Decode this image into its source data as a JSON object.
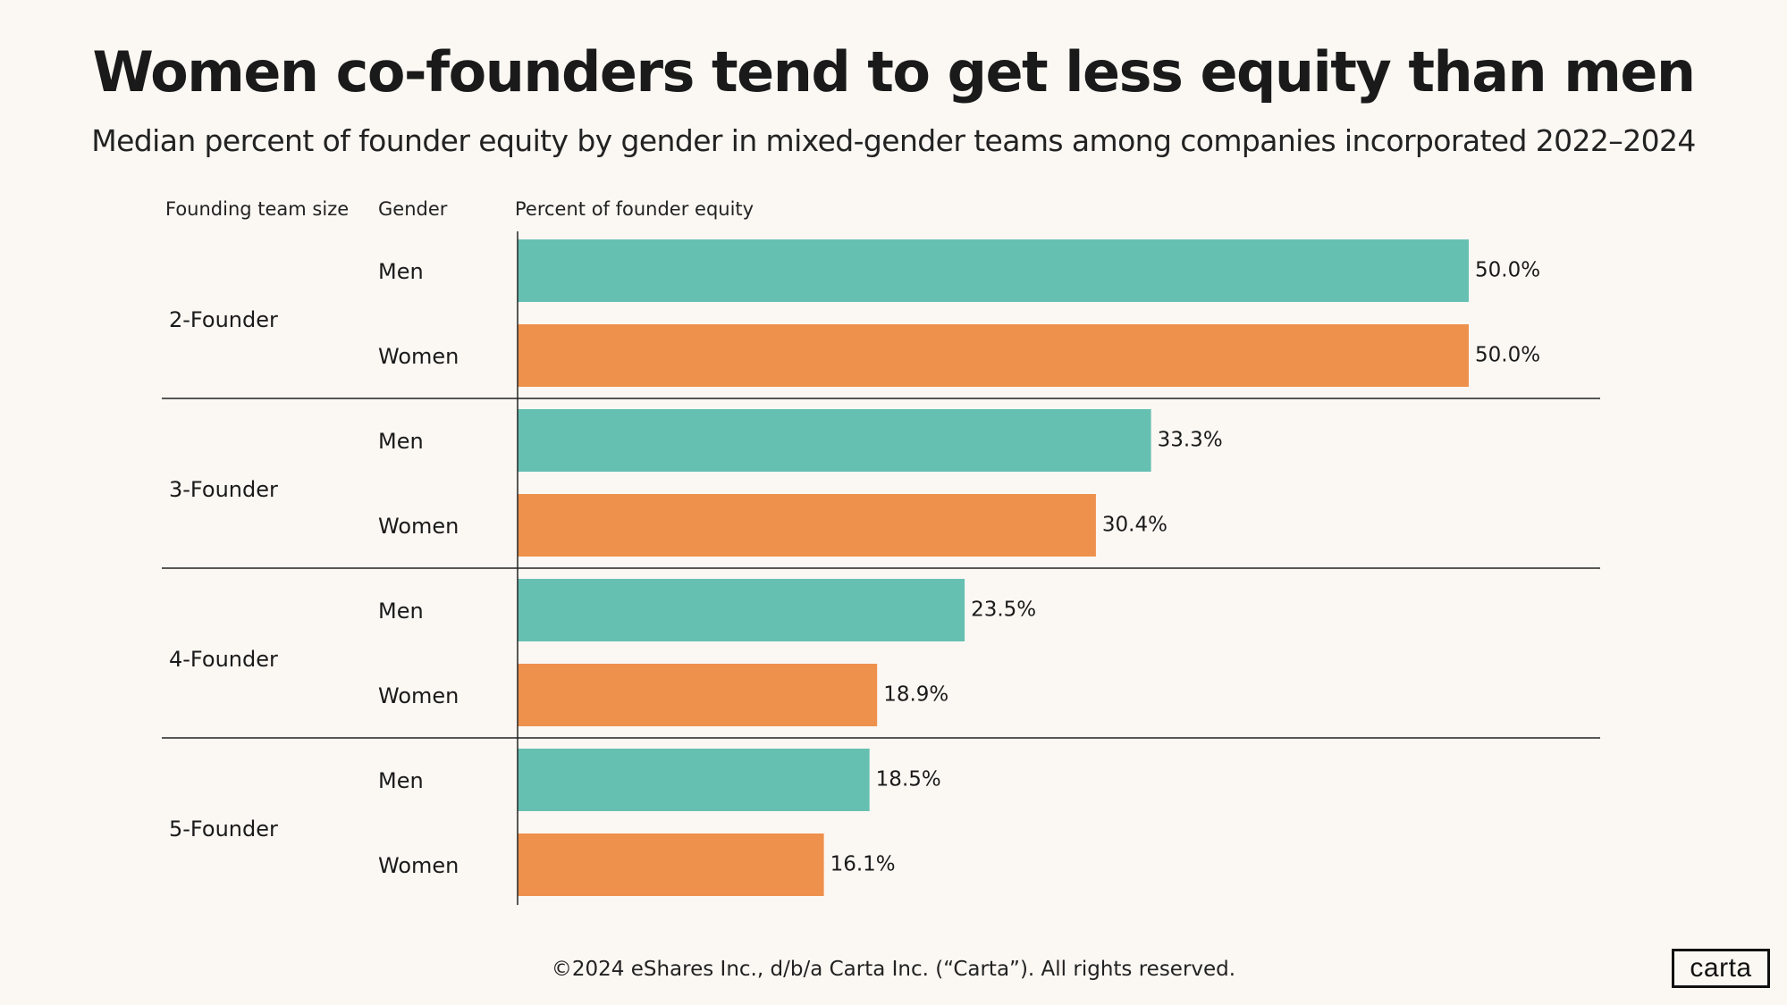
{
  "colors": {
    "men": "#66c0b2",
    "women": "#ee914c",
    "divider": "#222222",
    "text": "#1a1a1a"
  },
  "chart_data": {
    "type": "bar",
    "orientation": "horizontal",
    "title": "Women co-founders tend to get less equity than men",
    "subtitle": "Median percent of founder equity by gender in mixed-gender teams among  companies incorporated 2022–2024",
    "column_headers": {
      "team_size": "Founding team size",
      "gender": "Gender",
      "value": "Percent of founder equity"
    },
    "xlim": [
      0,
      50
    ],
    "grid": false,
    "groups": [
      {
        "label": "2-Founder",
        "bars": [
          {
            "gender": "Men",
            "value": 50.0,
            "label": "50.0%"
          },
          {
            "gender": "Women",
            "value": 50.0,
            "label": "50.0%"
          }
        ]
      },
      {
        "label": "3-Founder",
        "bars": [
          {
            "gender": "Men",
            "value": 33.3,
            "label": "33.3%"
          },
          {
            "gender": "Women",
            "value": 30.4,
            "label": "30.4%"
          }
        ]
      },
      {
        "label": "4-Founder",
        "bars": [
          {
            "gender": "Men",
            "value": 23.5,
            "label": "23.5%"
          },
          {
            "gender": "Women",
            "value": 18.9,
            "label": "18.9%"
          }
        ]
      },
      {
        "label": "5-Founder",
        "bars": [
          {
            "gender": "Men",
            "value": 18.5,
            "label": "18.5%"
          },
          {
            "gender": "Women",
            "value": 16.1,
            "label": "16.1%"
          }
        ]
      }
    ]
  },
  "footer": {
    "copyright": "©2024 eShares Inc., d/b/a Carta Inc. (“Carta”). All rights reserved."
  },
  "logo": {
    "text": "carta"
  }
}
